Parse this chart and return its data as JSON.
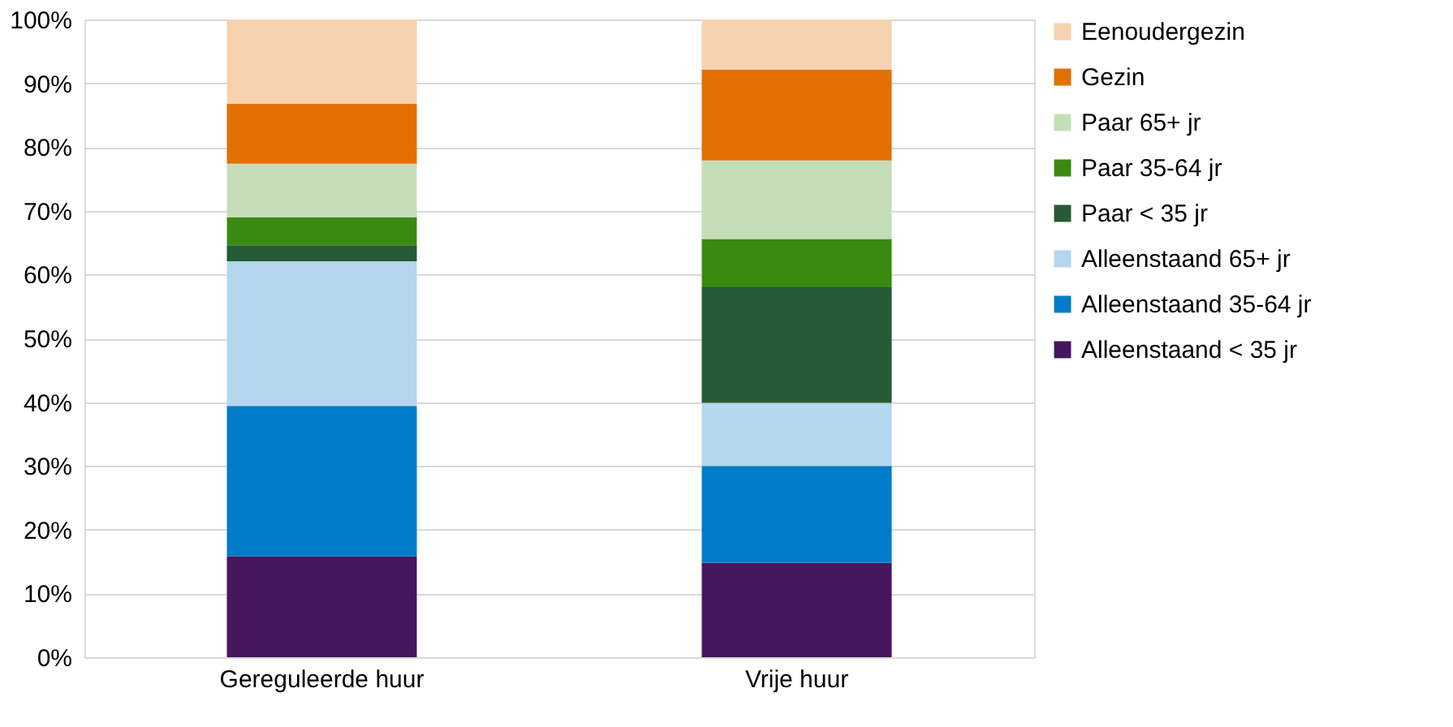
{
  "chart_data": {
    "type": "bar",
    "stacked": true,
    "categories": [
      "Gereguleerde huur",
      "Vrije huur"
    ],
    "series": [
      {
        "name": "Alleenstaand < 35 jr",
        "color": "#46165e",
        "values": [
          15.8,
          14.8
        ]
      },
      {
        "name": "Alleenstaand 35-64 jr",
        "color": "#007bc7",
        "values": [
          23.6,
          15.2
        ]
      },
      {
        "name": "Alleenstaand 65+ jr",
        "color": "#b4d6ee",
        "values": [
          22.7,
          9.9
        ]
      },
      {
        "name": "Paar < 35 jr",
        "color": "#275a37",
        "values": [
          2.5,
          18.1
        ]
      },
      {
        "name": "Paar 35-64 jr",
        "color": "#3a8a12",
        "values": [
          4.4,
          7.6
        ]
      },
      {
        "name": "Paar 65+ jr",
        "color": "#c5ddb9",
        "values": [
          8.4,
          12.3
        ]
      },
      {
        "name": "Gezin",
        "color": "#e17000",
        "values": [
          9.4,
          14.2
        ]
      },
      {
        "name": "Eenoudergezin",
        "color": "#f6d2b0",
        "values": [
          13.2,
          7.9
        ]
      }
    ],
    "ylim": [
      0,
      100
    ],
    "yticks": [
      {
        "value": 0,
        "label": "0%"
      },
      {
        "value": 10,
        "label": "10%"
      },
      {
        "value": 20,
        "label": "20%"
      },
      {
        "value": 30,
        "label": "30%"
      },
      {
        "value": 40,
        "label": "40%"
      },
      {
        "value": 50,
        "label": "50%"
      },
      {
        "value": 60,
        "label": "60%"
      },
      {
        "value": 70,
        "label": "70%"
      },
      {
        "value": 80,
        "label": "80%"
      },
      {
        "value": 90,
        "label": "90%"
      },
      {
        "value": 100,
        "label": "100%"
      }
    ],
    "grid": "y",
    "legend": "right"
  }
}
